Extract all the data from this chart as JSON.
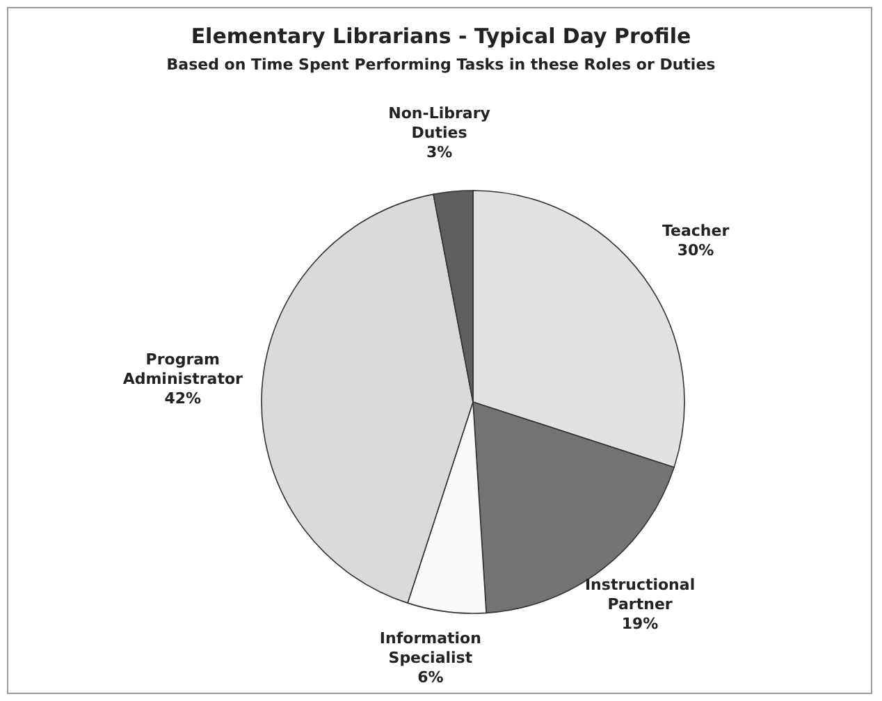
{
  "chart_data": {
    "type": "pie",
    "title": "Elementary Librarians - Typical Day Profile",
    "subtitle": "Based on Time Spent Performing Tasks in these Roles or Duties",
    "categories": [
      "Teacher",
      "Instructional Partner",
      "Information Specialist",
      "Program Administrator",
      "Non-Library Duties"
    ],
    "values": [
      30,
      19,
      6,
      42,
      3
    ],
    "colors": [
      "#e2e2e2",
      "#737373",
      "#fafafa",
      "#dadada",
      "#5e5e5e"
    ],
    "value_labels": [
      "30%",
      "19%",
      "6%",
      "42%",
      "3%"
    ],
    "legend": false
  }
}
